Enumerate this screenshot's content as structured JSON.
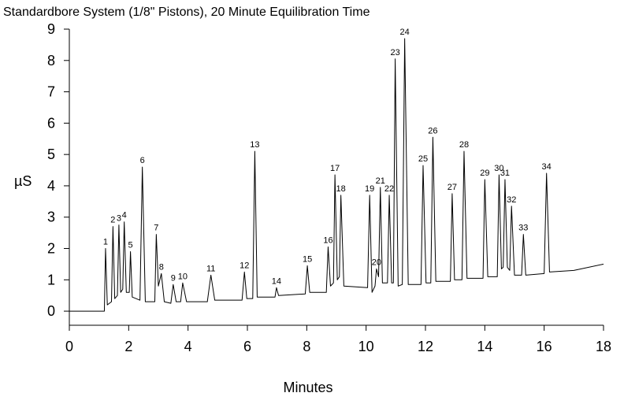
{
  "chart_data": {
    "type": "line",
    "title": "Standardbore System (1/8\" Pistons), 20 Minute Equilibration Time",
    "x_label": "Minutes",
    "y_label": "µS",
    "xlim": [
      0,
      18
    ],
    "xticks": [
      0,
      2,
      4,
      6,
      8,
      10,
      12,
      14,
      16,
      18
    ],
    "ylim": [
      -0.45,
      9
    ],
    "yticks": [
      0,
      1,
      2,
      3,
      4,
      5,
      6,
      7,
      8,
      9
    ],
    "series": [
      {
        "color": "#000000",
        "x": [
          0,
          1.18,
          1.22,
          1.28,
          1.42,
          1.47,
          1.53,
          1.62,
          1.67,
          1.73,
          1.8,
          1.85,
          1.92,
          2.02,
          2.06,
          2.12,
          2.38,
          2.46,
          2.56,
          2.88,
          2.93,
          3.0,
          3.1,
          3.2,
          3.42,
          3.5,
          3.6,
          3.75,
          3.82,
          3.95,
          4.65,
          4.77,
          4.9,
          5.82,
          5.9,
          5.98,
          6.18,
          6.25,
          6.33,
          6.93,
          6.98,
          7.05,
          7.95,
          8.02,
          8.1,
          8.66,
          8.72,
          8.8,
          8.9,
          8.95,
          9.03,
          9.1,
          9.15,
          9.25,
          10.05,
          10.12,
          10.2,
          10.3,
          10.35,
          10.42,
          10.48,
          10.55,
          10.72,
          10.78,
          10.86,
          10.92,
          10.98,
          11.08,
          11.22,
          11.3,
          11.42,
          11.85,
          11.92,
          12.02,
          12.18,
          12.25,
          12.35,
          12.84,
          12.9,
          12.98,
          13.23,
          13.3,
          13.4,
          13.94,
          14.0,
          14.1,
          14.42,
          14.48,
          14.56,
          14.62,
          14.68,
          14.76,
          14.84,
          14.9,
          15.0,
          15.24,
          15.3,
          15.38,
          16.0,
          16.08,
          16.18,
          17.0,
          18.0
        ],
        "values": [
          0,
          0,
          2.0,
          0.2,
          0.3,
          2.7,
          0.4,
          0.5,
          2.75,
          0.6,
          0.7,
          2.85,
          0.6,
          0.6,
          1.9,
          0.45,
          0.35,
          4.6,
          0.3,
          0.3,
          2.45,
          0.8,
          1.2,
          0.3,
          0.25,
          0.85,
          0.3,
          0.3,
          0.9,
          0.3,
          0.3,
          1.15,
          0.35,
          0.35,
          1.25,
          0.4,
          0.4,
          5.1,
          0.45,
          0.45,
          0.75,
          0.5,
          0.55,
          1.45,
          0.6,
          0.6,
          2.05,
          0.8,
          0.9,
          4.35,
          1.0,
          1.1,
          3.7,
          0.8,
          0.75,
          3.7,
          0.6,
          0.8,
          1.35,
          1.1,
          3.95,
          0.9,
          0.9,
          3.7,
          0.9,
          0.9,
          8.05,
          0.8,
          0.85,
          8.7,
          0.85,
          0.85,
          4.65,
          0.9,
          0.9,
          5.55,
          0.95,
          0.95,
          3.75,
          1.0,
          1.0,
          5.1,
          1.05,
          1.05,
          4.2,
          1.1,
          1.1,
          4.35,
          1.35,
          1.4,
          4.2,
          1.4,
          1.3,
          3.35,
          1.15,
          1.15,
          2.45,
          1.15,
          1.2,
          4.4,
          1.25,
          1.3,
          1.5
        ]
      }
    ],
    "peaks": [
      {
        "label": "1",
        "x": 1.22,
        "y": 2.0
      },
      {
        "label": "2",
        "x": 1.47,
        "y": 2.7
      },
      {
        "label": "3",
        "x": 1.67,
        "y": 2.75
      },
      {
        "label": "4",
        "x": 1.85,
        "y": 2.85
      },
      {
        "label": "5",
        "x": 2.06,
        "y": 1.9
      },
      {
        "label": "6",
        "x": 2.46,
        "y": 4.6
      },
      {
        "label": "7",
        "x": 2.93,
        "y": 2.45
      },
      {
        "label": "8",
        "x": 3.1,
        "y": 1.2
      },
      {
        "label": "9",
        "x": 3.5,
        "y": 0.85
      },
      {
        "label": "10",
        "x": 3.82,
        "y": 0.9
      },
      {
        "label": "11",
        "x": 4.77,
        "y": 1.15
      },
      {
        "label": "12",
        "x": 5.9,
        "y": 1.25
      },
      {
        "label": "13",
        "x": 6.25,
        "y": 5.1
      },
      {
        "label": "14",
        "x": 6.98,
        "y": 0.75
      },
      {
        "label": "15",
        "x": 8.02,
        "y": 1.45
      },
      {
        "label": "16",
        "x": 8.72,
        "y": 2.05
      },
      {
        "label": "17",
        "x": 8.95,
        "y": 4.35
      },
      {
        "label": "18",
        "x": 9.15,
        "y": 3.7
      },
      {
        "label": "19",
        "x": 10.12,
        "y": 3.7
      },
      {
        "label": "20",
        "x": 10.35,
        "y": 1.35
      },
      {
        "label": "21",
        "x": 10.48,
        "y": 3.95
      },
      {
        "label": "22",
        "x": 10.78,
        "y": 3.7
      },
      {
        "label": "23",
        "x": 10.98,
        "y": 8.05
      },
      {
        "label": "24",
        "x": 11.3,
        "y": 8.7
      },
      {
        "label": "25",
        "x": 11.92,
        "y": 4.65
      },
      {
        "label": "26",
        "x": 12.25,
        "y": 5.55
      },
      {
        "label": "27",
        "x": 12.9,
        "y": 3.75
      },
      {
        "label": "28",
        "x": 13.3,
        "y": 5.1
      },
      {
        "label": "29",
        "x": 14.0,
        "y": 4.2
      },
      {
        "label": "30",
        "x": 14.48,
        "y": 4.35
      },
      {
        "label": "31",
        "x": 14.68,
        "y": 4.2
      },
      {
        "label": "32",
        "x": 14.9,
        "y": 3.35
      },
      {
        "label": "33",
        "x": 15.3,
        "y": 2.45
      },
      {
        "label": "34",
        "x": 16.08,
        "y": 4.4
      }
    ]
  }
}
